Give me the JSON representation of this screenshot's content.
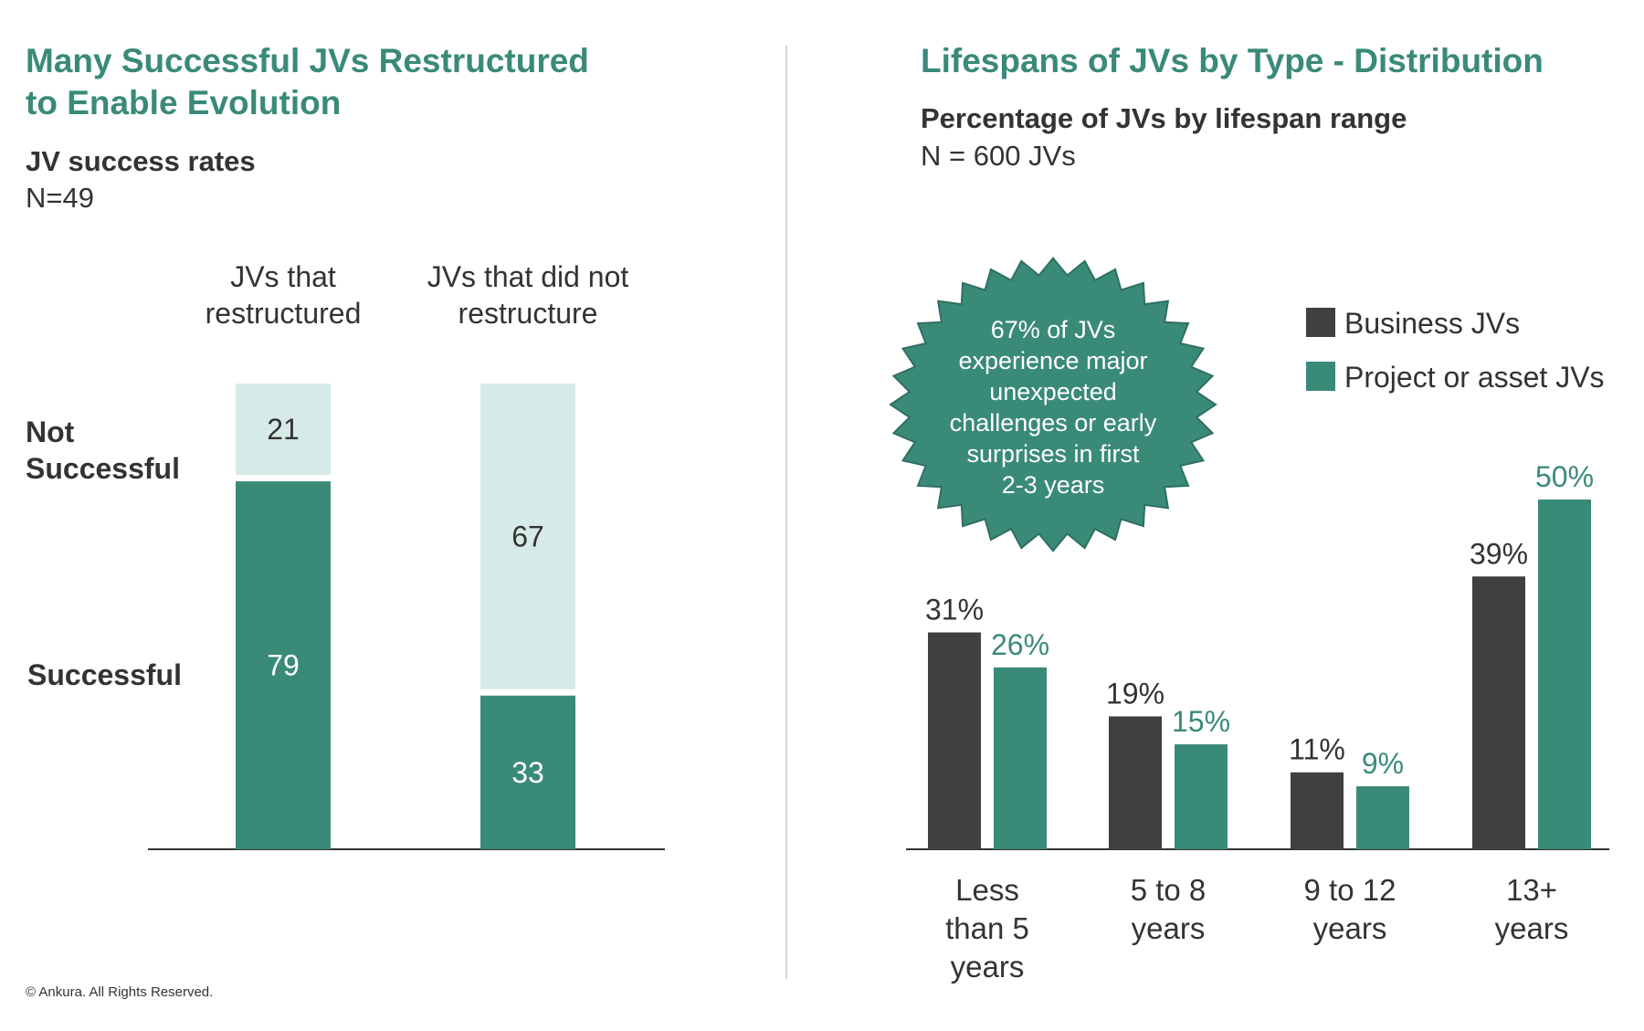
{
  "left": {
    "title_line1": "Many Successful JVs Restructured",
    "title_line2": "to Enable Evolution",
    "subtitle": "JV success rates",
    "note": "N=49"
  },
  "right": {
    "title": "Lifespans of JVs by Type - Distribution",
    "subtitle": "Percentage of JVs by lifespan range",
    "note": "N = 600 JVs",
    "callout_lines": [
      "67% of JVs",
      "experience major",
      "unexpected",
      "challenges or early",
      "surprises in first",
      "2-3 years"
    ]
  },
  "copyright": "© Ankura. All Rights Reserved.",
  "colors": {
    "accent": "#3a8a78",
    "light": "#d6ebe7",
    "dark": "#404040",
    "text": "#333333"
  },
  "chart_data": [
    {
      "type": "bar",
      "stacked": true,
      "categories": [
        [
          "JVs that",
          "restructured"
        ],
        [
          "JVs that did not",
          "restructure"
        ]
      ],
      "series": [
        {
          "name": "Successful",
          "label_lines": [
            "Successful"
          ],
          "values": [
            79,
            33
          ]
        },
        {
          "name": "Not Successful",
          "label_lines": [
            "Not",
            "Successful"
          ],
          "values": [
            21,
            67
          ]
        }
      ],
      "ylim": [
        0,
        100
      ]
    },
    {
      "type": "bar",
      "categories": [
        [
          "Less",
          "than 5",
          "years"
        ],
        [
          "5 to 8",
          "years"
        ],
        [
          "9 to 12",
          "years"
        ],
        [
          "13+",
          "years"
        ]
      ],
      "series": [
        {
          "name": "Business JVs",
          "values": [
            31,
            19,
            11,
            39
          ],
          "labels": [
            "31%",
            "19%",
            "11%",
            "39%"
          ]
        },
        {
          "name": "Project or asset JVs",
          "values": [
            26,
            15,
            9,
            50
          ],
          "labels": [
            "26%",
            "15%",
            "9%",
            "50%"
          ]
        }
      ],
      "ylim": [
        0,
        50
      ],
      "legend": "top-right"
    }
  ]
}
